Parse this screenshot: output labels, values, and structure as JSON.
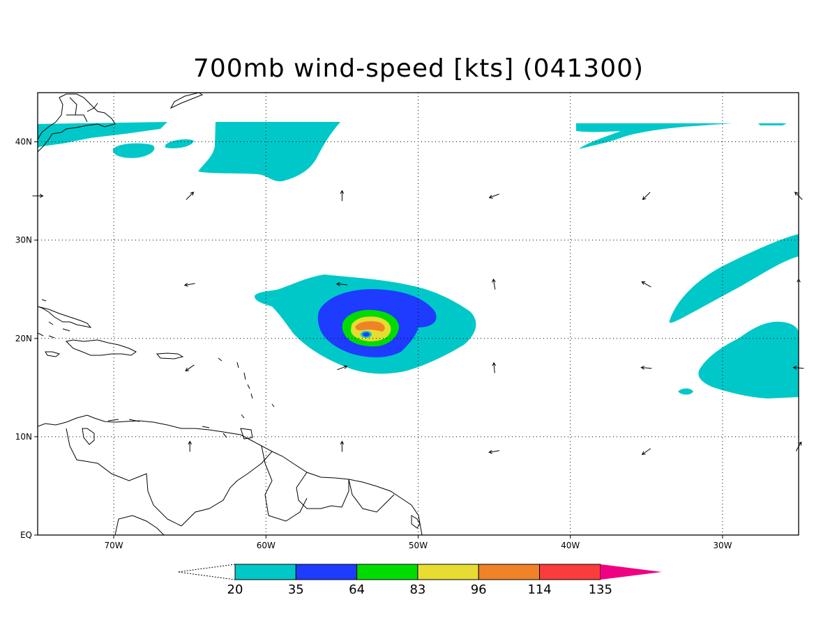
{
  "title": "700mb wind-speed [kts] (041300)",
  "map": {
    "lon_range": [
      -75,
      -25
    ],
    "lat_range": [
      0,
      45
    ],
    "lon_ticks": [
      {
        "lon": -70,
        "label": "70W"
      },
      {
        "lon": -60,
        "label": "60W"
      },
      {
        "lon": -50,
        "label": "50W"
      },
      {
        "lon": -40,
        "label": "40W"
      },
      {
        "lon": -30,
        "label": "30W"
      }
    ],
    "lat_ticks": [
      {
        "lat": 0,
        "label": "EQ"
      },
      {
        "lat": 10,
        "label": "10N"
      },
      {
        "lat": 20,
        "label": "20N"
      },
      {
        "lat": 30,
        "label": "30N"
      },
      {
        "lat": 40,
        "label": "40N"
      }
    ],
    "grid": "dotted",
    "storm_center": {
      "lon": -53.5,
      "lat": 21.0
    }
  },
  "colorbar": {
    "levels": [
      "20",
      "35",
      "64",
      "83",
      "96",
      "114",
      "135"
    ],
    "colors": [
      "#00c8c8",
      "#1e3cff",
      "#00dc00",
      "#e6dc32",
      "#f08228",
      "#fa3c3c",
      "#f00082"
    ],
    "extend": "both"
  },
  "wind_vectors": [
    {
      "lon": -75,
      "lat": 34.5,
      "deg": 90
    },
    {
      "lon": -65,
      "lat": 34.5,
      "deg": 45
    },
    {
      "lon": -55,
      "lat": 34.5,
      "deg": 0
    },
    {
      "lon": -45,
      "lat": 34.5,
      "deg": 250
    },
    {
      "lon": -35,
      "lat": 34.5,
      "deg": 225
    },
    {
      "lon": -25,
      "lat": 34.5,
      "deg": 315
    },
    {
      "lon": -65,
      "lat": 25.5,
      "deg": 260
    },
    {
      "lon": -55,
      "lat": 25.5,
      "deg": 275
    },
    {
      "lon": -45,
      "lat": 25.5,
      "deg": 350
    },
    {
      "lon": -35,
      "lat": 25.5,
      "deg": 300
    },
    {
      "lon": -25,
      "lat": 25.5,
      "deg": 0
    },
    {
      "lon": -65,
      "lat": 17.0,
      "deg": 235
    },
    {
      "lon": -55,
      "lat": 17.0,
      "deg": 70
    },
    {
      "lon": -45,
      "lat": 17.0,
      "deg": 355
    },
    {
      "lon": -35,
      "lat": 17.0,
      "deg": 275
    },
    {
      "lon": -25,
      "lat": 17.0,
      "deg": 275
    },
    {
      "lon": -65,
      "lat": 9.0,
      "deg": 0
    },
    {
      "lon": -55,
      "lat": 9.0,
      "deg": 0
    },
    {
      "lon": -45,
      "lat": 8.5,
      "deg": 260
    },
    {
      "lon": -35,
      "lat": 8.5,
      "deg": 235
    },
    {
      "lon": -25,
      "lat": 9.0,
      "deg": 30
    }
  ]
}
